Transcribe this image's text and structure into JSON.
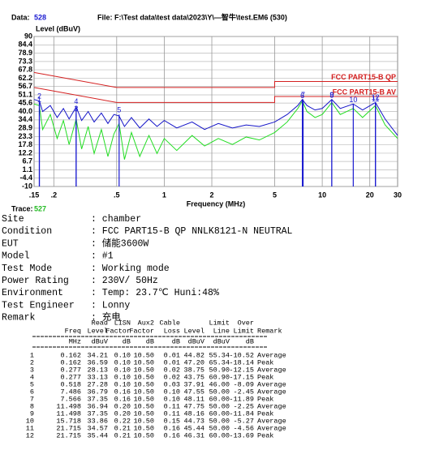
{
  "header": {
    "data_label": "Data:",
    "data_value": "528",
    "file": "File: F:\\Test data\\test data\\2023\\Y\\—智牛\\test.EM6  (530)"
  },
  "chart_data": {
    "type": "line",
    "ylabel": "Level (dBuV)",
    "xlabel": "Frequency (MHz)",
    "xscale": "log",
    "grid": true,
    "xlim": [
      0.15,
      30
    ],
    "ylim": [
      -10,
      90
    ],
    "xticks": [
      {
        "value": 0.15,
        "label": ".15"
      },
      {
        "value": 0.2,
        "label": ".2"
      },
      {
        "value": 0.5,
        "label": ".5"
      },
      1,
      2,
      5,
      10,
      20,
      30
    ],
    "yticks": [
      90,
      84.4,
      78.9,
      73.3,
      67.8,
      62.2,
      56.7,
      51.1,
      45.6,
      {
        "value": 40,
        "label": "40.0"
      },
      34.4,
      28.9,
      23.3,
      17.8,
      12.2,
      6.7,
      1.1,
      -4.4,
      -10
    ],
    "x": [
      0.15,
      0.162,
      0.17,
      0.19,
      0.21,
      0.23,
      0.25,
      0.277,
      0.3,
      0.33,
      0.36,
      0.4,
      0.44,
      0.48,
      0.518,
      0.56,
      0.62,
      0.7,
      0.8,
      0.9,
      1.0,
      1.2,
      1.5,
      1.8,
      2.2,
      2.7,
      3.3,
      4,
      5,
      6,
      7,
      7.486,
      8,
      9,
      10,
      11.498,
      13,
      15.718,
      18,
      21.715,
      25,
      30
    ],
    "series": [
      {
        "color": "#1414c8",
        "values": [
          48,
          47,
          40,
          44,
          36,
          42,
          35,
          43,
          34,
          40,
          33,
          39,
          32,
          38,
          37,
          30,
          36,
          29,
          35,
          30,
          34,
          29,
          33,
          28,
          32,
          29,
          31,
          30,
          33,
          38,
          44,
          48,
          44,
          41,
          42,
          48,
          42,
          45,
          41,
          46,
          35,
          24
        ]
      },
      {
        "color": "#22dd22",
        "values": [
          45,
          44,
          28,
          38,
          22,
          34,
          18,
          35,
          15,
          30,
          12,
          28,
          10,
          25,
          32,
          8,
          26,
          10,
          24,
          12,
          22,
          14,
          24,
          17,
          22,
          18,
          23,
          21,
          26,
          33,
          42,
          47,
          40,
          36,
          38,
          46,
          38,
          42,
          36,
          44,
          31,
          22
        ]
      }
    ],
    "limits": [
      {
        "name": "FCC PART15-B QP",
        "color": "#d42020",
        "x": [
          0.15,
          0.5,
          5,
          5,
          30
        ],
        "values": [
          66,
          56,
          56,
          60,
          60
        ]
      },
      {
        "name": "FCC PART15-B AV",
        "color": "#d42020",
        "x": [
          0.15,
          0.5,
          5,
          5,
          30
        ],
        "values": [
          56,
          46,
          46,
          50,
          50
        ]
      }
    ],
    "marker_color": "#1a1ad0"
  },
  "trace": {
    "label": "Trace:",
    "value": "527"
  },
  "info": [
    {
      "key": "Site",
      "value": ": chamber"
    },
    {
      "key": "Condition",
      "value": ": FCC PART15-B QP NNLK8121-N NEUTRAL"
    },
    {
      "key": "EUT",
      "value": ": 储能3600W"
    },
    {
      "key": "Model",
      "value": ": #1"
    },
    {
      "key": "Test Mode",
      "value": ": Working mode"
    },
    {
      "key": "Power Rating",
      "value": ": 230V/ 50Hz"
    },
    {
      "key": "Environment",
      "value": ": Temp: 23.7℃ Huni:48%"
    },
    {
      "key": "Test Engineer",
      "value": ": Lonny"
    },
    {
      "key": "Remark",
      "value": ": 充电"
    }
  ],
  "table": {
    "columns": [
      {
        "bottom": "Freq",
        "unit": "MHz"
      },
      {
        "top": "Read",
        "bottom": "Level",
        "unit": "dBuV"
      },
      {
        "top": "LISN",
        "bottom": "Factor",
        "unit": "dB"
      },
      {
        "top": "Aux2",
        "bottom": "Factor",
        "unit": "dB"
      },
      {
        "top": "Cable",
        "bottom": "Loss",
        "unit": "dB"
      },
      {
        "bottom": "Level",
        "unit": "dBuV"
      },
      {
        "top": "Limit",
        "bottom": "Line",
        "unit": "dBuV"
      },
      {
        "top": "Over",
        "bottom": "Limit",
        "unit": "dB"
      },
      {
        "bottom": "Remark"
      }
    ],
    "rows": [
      [
        "1",
        "0.162",
        "34.21",
        "0.10",
        "10.50",
        "0.01",
        "44.82",
        "55.34",
        "-10.52",
        "Average"
      ],
      [
        "2",
        "0.162",
        "36.59",
        "0.10",
        "10.50",
        "0.01",
        "47.20",
        "65.34",
        "-18.14",
        "Peak"
      ],
      [
        "3",
        "0.277",
        "28.13",
        "0.10",
        "10.50",
        "0.02",
        "38.75",
        "50.90",
        "-12.15",
        "Average"
      ],
      [
        "4",
        "0.277",
        "33.13",
        "0.10",
        "10.50",
        "0.02",
        "43.75",
        "60.90",
        "-17.15",
        "Peak"
      ],
      [
        "5",
        "0.518",
        "27.28",
        "0.10",
        "10.50",
        "0.03",
        "37.91",
        "46.00",
        "-8.09",
        "Average"
      ],
      [
        "6",
        "7.486",
        "36.79",
        "0.16",
        "10.50",
        "0.10",
        "47.55",
        "50.00",
        "-2.45",
        "Average"
      ],
      [
        "7",
        "7.566",
        "37.35",
        "0.16",
        "10.50",
        "0.10",
        "48.11",
        "60.00",
        "-11.89",
        "Peak"
      ],
      [
        "8",
        "11.498",
        "36.94",
        "0.20",
        "10.50",
        "0.11",
        "47.75",
        "50.00",
        "-2.25",
        "Average"
      ],
      [
        "9",
        "11.498",
        "37.35",
        "0.20",
        "10.50",
        "0.11",
        "48.16",
        "60.00",
        "-11.84",
        "Peak"
      ],
      [
        "10",
        "15.718",
        "33.86",
        "0.22",
        "10.50",
        "0.15",
        "44.73",
        "50.00",
        "-5.27",
        "Average"
      ],
      [
        "11",
        "21.715",
        "34.57",
        "0.21",
        "10.50",
        "0.16",
        "45.44",
        "50.00",
        "-4.56",
        "Average"
      ],
      [
        "12",
        "21.715",
        "35.44",
        "0.21",
        "10.50",
        "0.16",
        "46.31",
        "60.00",
        "-13.69",
        "Peak"
      ]
    ]
  }
}
